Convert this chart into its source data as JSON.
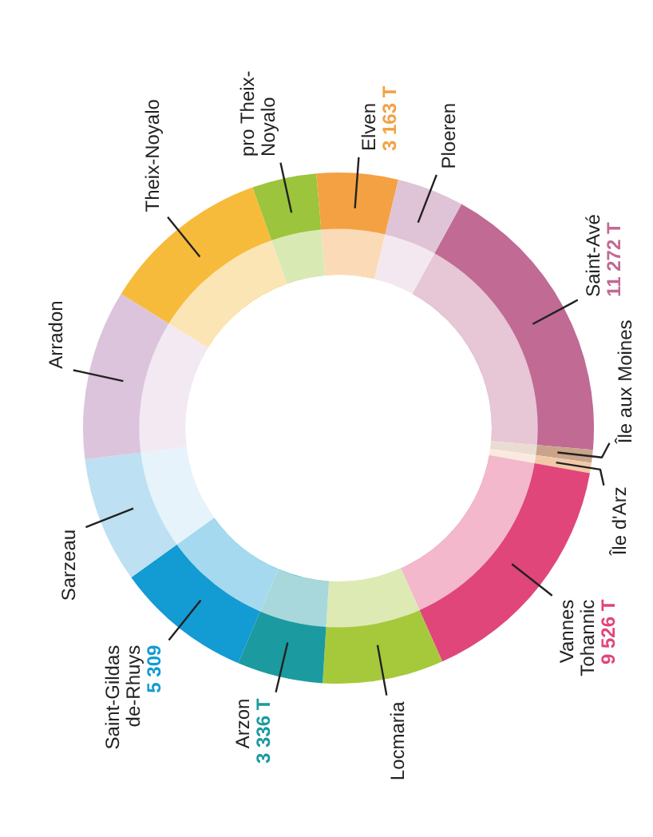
{
  "chart_data": {
    "type": "donut",
    "categories": [
      "Saint-Avé",
      "Île aux Moines",
      "Île d'Arz",
      "Vannes Tohannic",
      "Locmaria",
      "Arzon",
      "Saint-Gildas de-Rhuys",
      "Sarzeau",
      "Arradon",
      "Theix-Noyalo",
      "pro Theix-Noyalo",
      "Elven",
      "Ploeren"
    ],
    "values": [
      11272,
      500,
      400,
      9526,
      4700,
      3336,
      5309,
      4900,
      6600,
      6600,
      2500,
      3163,
      2600
    ],
    "value_labels": [
      "11 272 T",
      null,
      null,
      "9 526 T",
      null,
      "3 336 T",
      "5 309",
      null,
      null,
      null,
      null,
      "3 163 T",
      null
    ],
    "colors": [
      "#c06a94",
      "#c9a48a",
      "#f2c9a8",
      "#e0467a",
      "#a6c93c",
      "#1b9aa0",
      "#139bd4",
      "#bde0f2",
      "#dcc4dc",
      "#f7bb3b",
      "#9cc43c",
      "#f3a143",
      "#dfc3d6"
    ]
  }
}
